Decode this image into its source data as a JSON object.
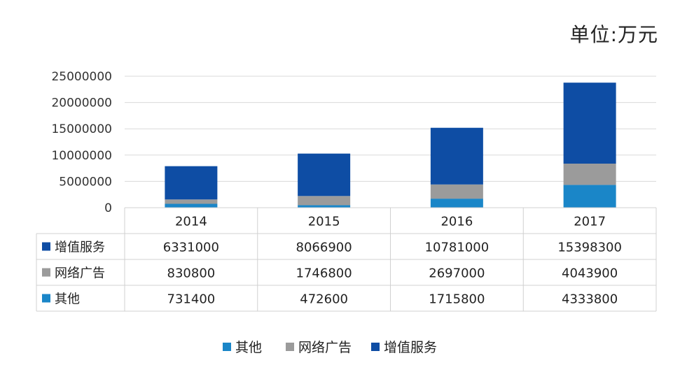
{
  "unit_label": "单位:万元",
  "colors": {
    "增值服务": "#0E4DA4",
    "网络广告": "#9B9B9B",
    "其他": "#1A86C8"
  },
  "chart_data": {
    "type": "bar",
    "stacked": true,
    "categories": [
      "2014",
      "2015",
      "2016",
      "2017"
    ],
    "series": [
      {
        "name": "其他",
        "values": [
          731400,
          472600,
          1715800,
          4333800
        ]
      },
      {
        "name": "网络广告",
        "values": [
          830800,
          1746800,
          2697000,
          4043900
        ]
      },
      {
        "name": "增值服务",
        "values": [
          6331000,
          8066900,
          10781000,
          15398300
        ]
      }
    ],
    "ylim": [
      0,
      25000000
    ],
    "yticks": [
      0,
      5000000,
      10000000,
      15000000,
      20000000,
      25000000
    ],
    "ytick_labels": [
      "0",
      "5000000",
      "10000000",
      "15000000",
      "20000000",
      "25000000"
    ],
    "grid": true,
    "data_table": {
      "header": [
        "2014",
        "2015",
        "2016",
        "2017"
      ],
      "rows": [
        {
          "name": "增值服务",
          "values": [
            "6331000",
            "8066900",
            "10781000",
            "15398300"
          ]
        },
        {
          "name": "网络广告",
          "values": [
            "830800",
            "1746800",
            "2697000",
            "4043900"
          ]
        },
        {
          "name": "其他",
          "values": [
            "731400",
            "472600",
            "1715800",
            "4333800"
          ]
        }
      ]
    },
    "legend": [
      "其他",
      "网络广告",
      "增值服务"
    ],
    "legend_position": "bottom"
  }
}
